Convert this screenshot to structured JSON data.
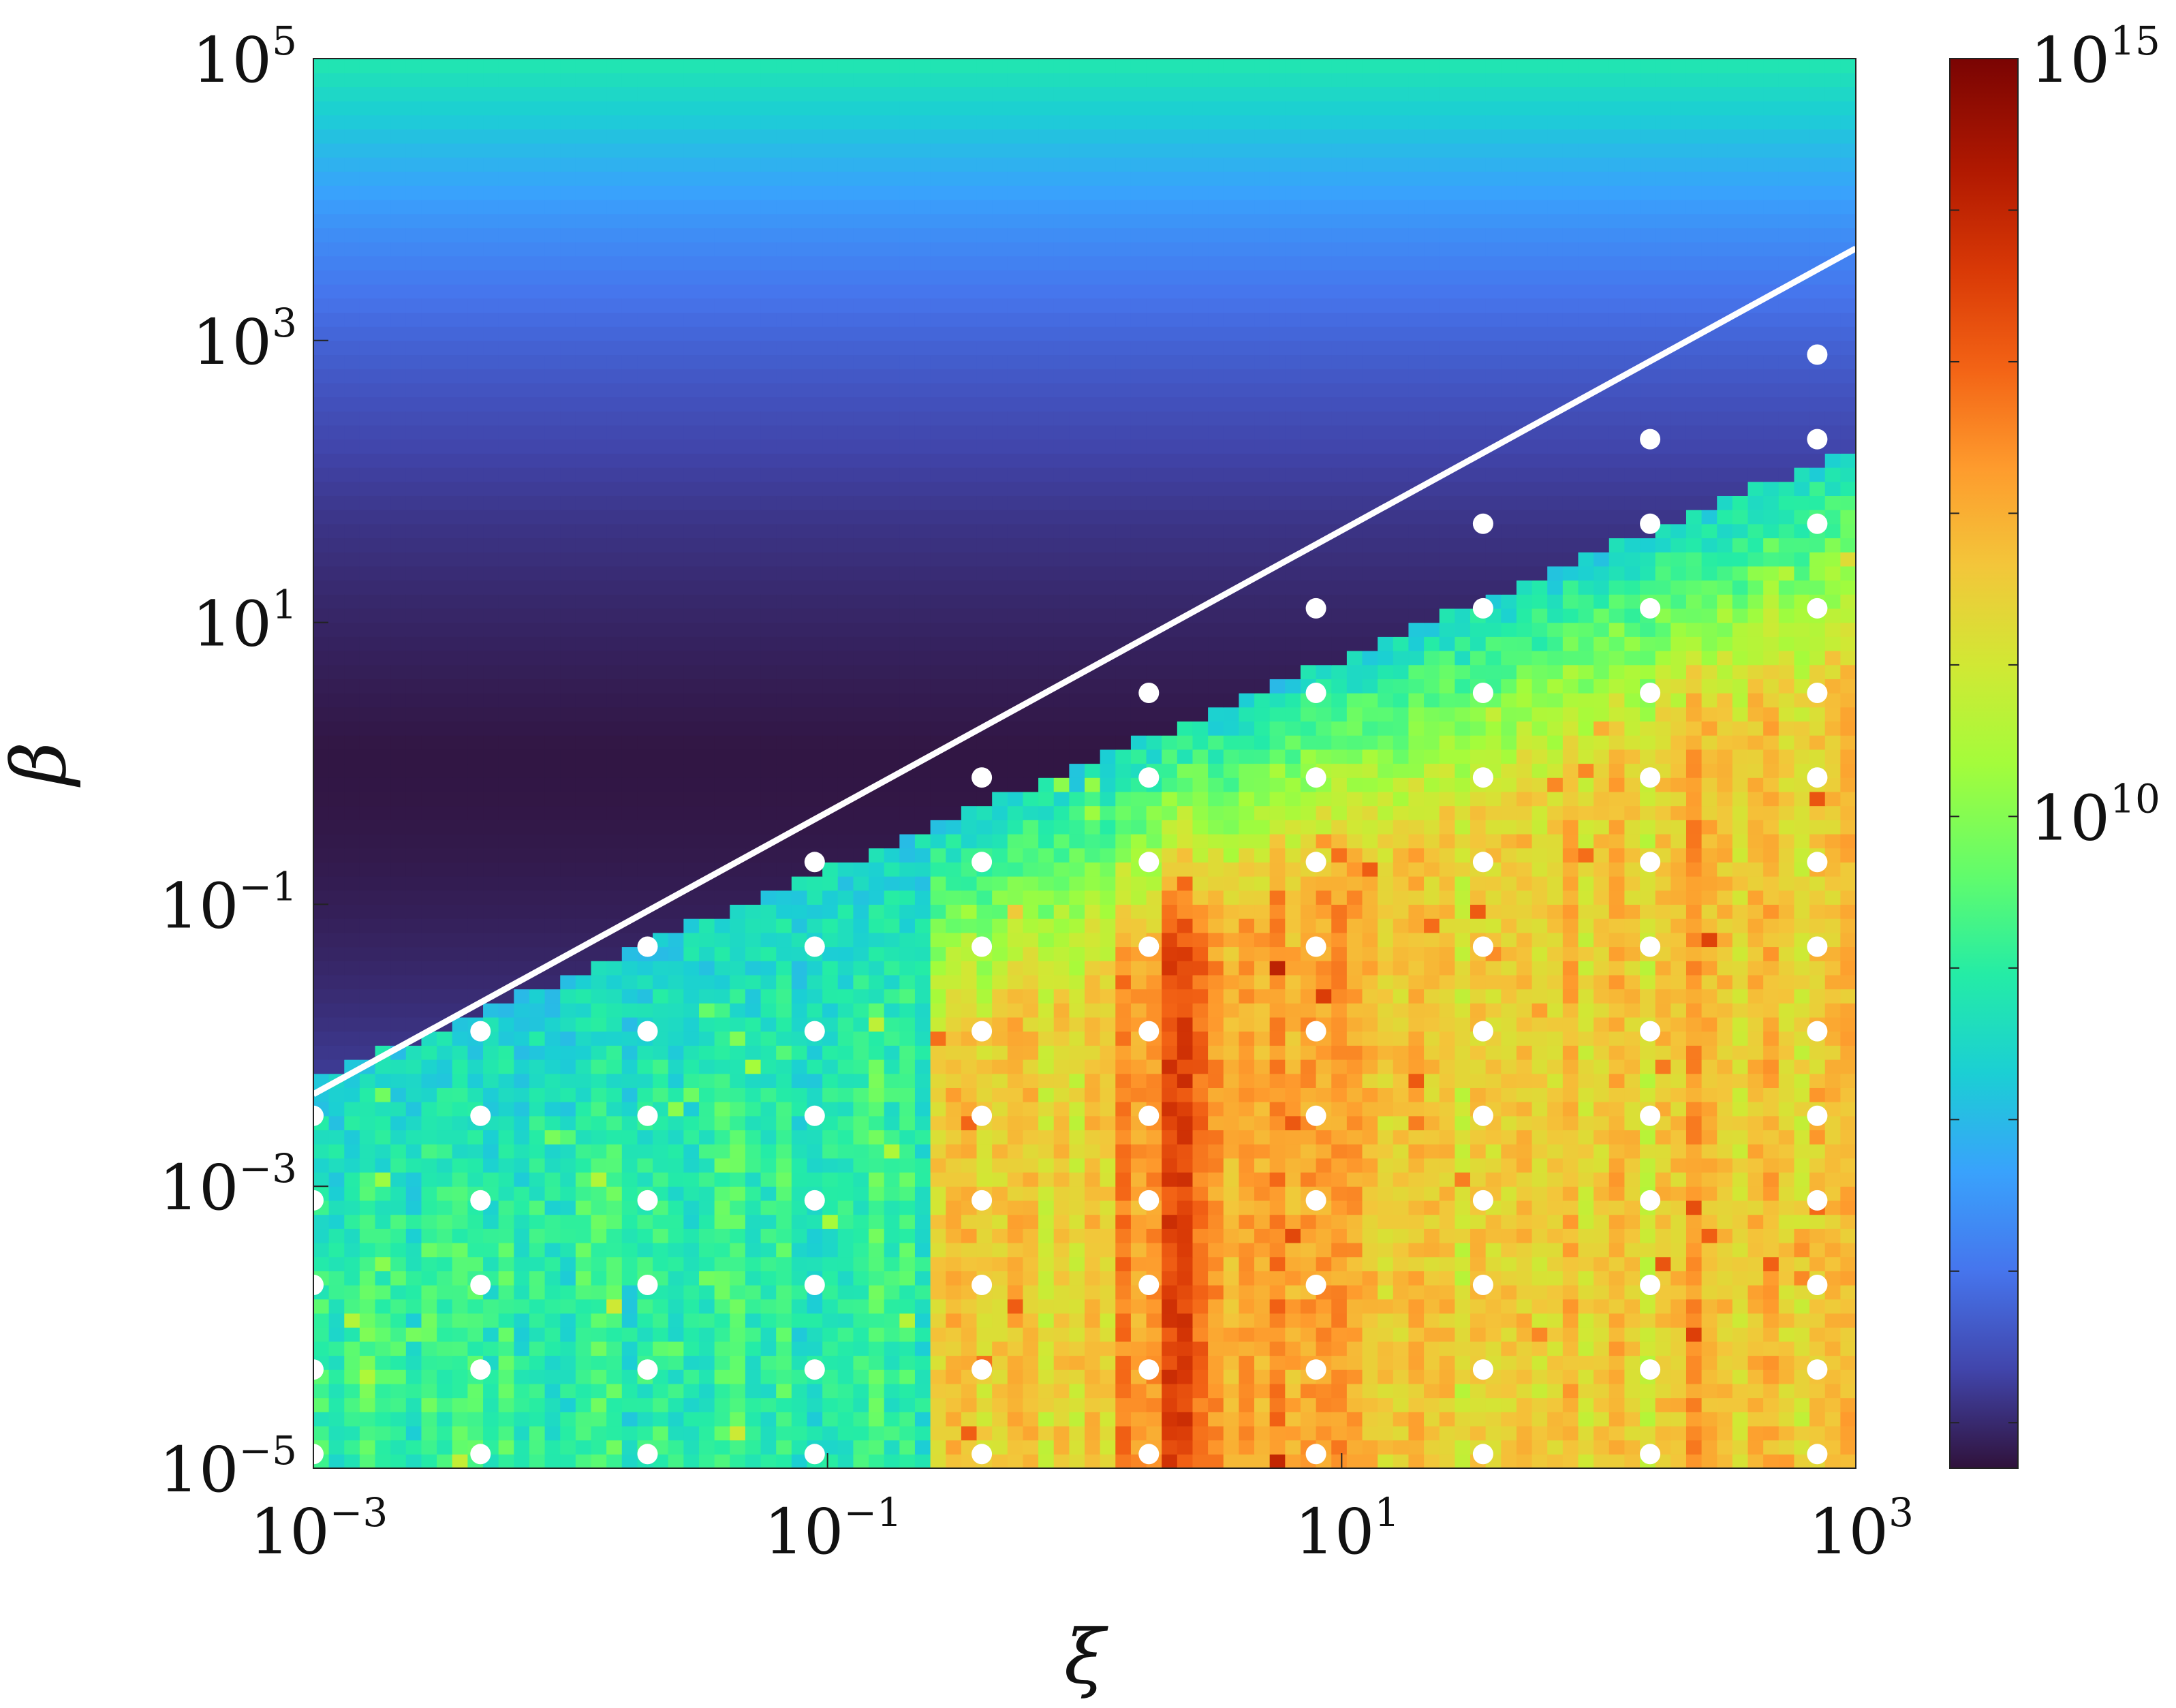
{
  "chart_data": {
    "type": "heatmap",
    "title": "",
    "xlabel": "ξ",
    "ylabel": "β",
    "x_scale": "log",
    "y_scale": "log",
    "xlim": [
      0.001,
      1000
    ],
    "ylim": [
      1e-05,
      100000
    ],
    "x_ticks": [
      {
        "base": "10",
        "exp": "−3",
        "value": 0.001
      },
      {
        "base": "10",
        "exp": "−1",
        "value": 0.1
      },
      {
        "base": "10",
        "exp": "1",
        "value": 10
      },
      {
        "base": "10",
        "exp": "3",
        "value": 1000
      }
    ],
    "y_ticks": [
      {
        "base": "10",
        "exp": "−5",
        "value": 1e-05
      },
      {
        "base": "10",
        "exp": "−3",
        "value": 0.001
      },
      {
        "base": "10",
        "exp": "−1",
        "value": 0.1
      },
      {
        "base": "10",
        "exp": "1",
        "value": 10
      },
      {
        "base": "10",
        "exp": "3",
        "value": 1000
      },
      {
        "base": "10",
        "exp": "5",
        "value": 100000
      }
    ],
    "colorbar": {
      "scale": "log",
      "colormap": "turbo",
      "ticks": [
        {
          "base": "10",
          "exp": "10",
          "value": 10000000000
        },
        {
          "base": "10",
          "exp": "15",
          "value": 1000000000000000
        }
      ],
      "log_min": 5.7,
      "log_max": 15.0
    },
    "boundary_line": {
      "color": "#ffffff",
      "points": [
        [
          0.001,
          0.0045
        ],
        [
          1000,
          4500
        ]
      ]
    },
    "markers": {
      "color": "#ffffff",
      "log_x_values": [
        -3.0,
        -2.35,
        -1.7,
        -1.05,
        -0.4,
        0.25,
        0.9,
        1.55,
        2.2,
        2.85
      ],
      "log_y_values": [
        -4.9,
        -4.3,
        -3.7,
        -3.1,
        -2.5,
        -1.9,
        -1.3,
        -0.7,
        -0.1,
        0.5,
        1.1,
        1.7,
        2.3,
        2.9,
        3.5
      ],
      "rule": "shown where log10(β) ≤ log10(ξ) + 0.57"
    }
  }
}
